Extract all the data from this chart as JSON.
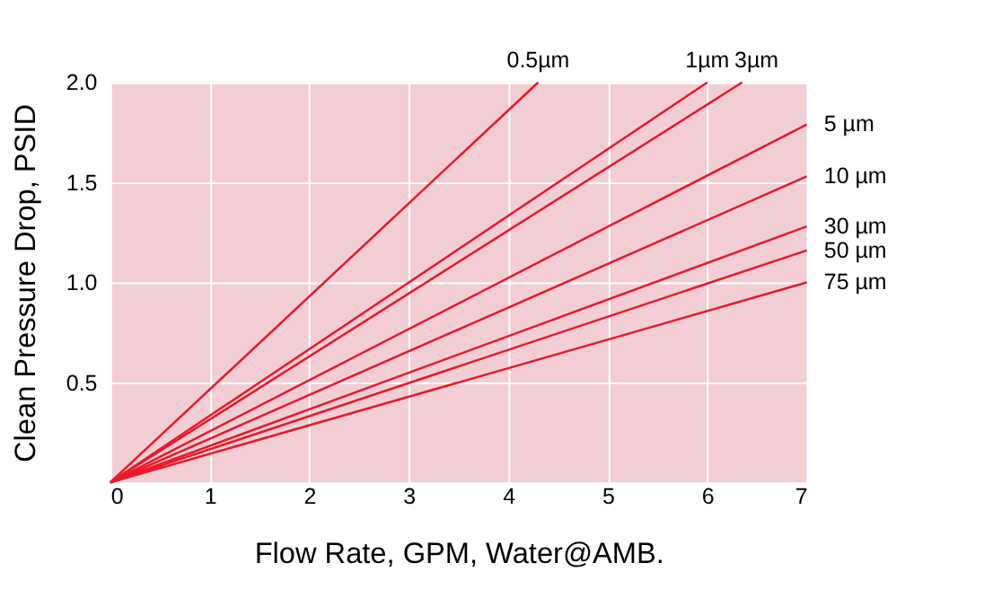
{
  "chart_data": {
    "type": "line",
    "xlabel": "Flow Rate, GPM, Water@AMB.",
    "ylabel": "Clean Pressure Drop, PSID",
    "xlim": [
      0,
      7
    ],
    "ylim": [
      0,
      2.0
    ],
    "xticks": [
      0,
      1,
      2,
      3,
      4,
      5,
      6,
      7
    ],
    "yticks": [
      0.5,
      {
        "value": 1,
        "label": "1.0"
      },
      1.5,
      {
        "value": 2,
        "label": "2.0"
      }
    ],
    "grid": true,
    "marker": "none",
    "line_style": "solid",
    "series": [
      {
        "name": "0.5µm",
        "color": "#e8192c",
        "x": [
          0,
          4.3
        ],
        "values": [
          0,
          2.0
        ]
      },
      {
        "name": "1µm",
        "color": "#e8192c",
        "x": [
          0,
          6.0
        ],
        "values": [
          0,
          2.0
        ]
      },
      {
        "name": "3µm",
        "color": "#e8192c",
        "x": [
          0,
          6.35
        ],
        "values": [
          0,
          2.0
        ]
      },
      {
        "name": "5  µm",
        "color": "#e8192c",
        "x": [
          0,
          7
        ],
        "values": [
          0,
          1.79
        ]
      },
      {
        "name": "10  µm",
        "color": "#e8192c",
        "x": [
          0,
          7
        ],
        "values": [
          0,
          1.53
        ]
      },
      {
        "name": "30  µm",
        "color": "#e8192c",
        "x": [
          0,
          7
        ],
        "values": [
          0,
          1.28
        ]
      },
      {
        "name": "50  µm",
        "color": "#e8192c",
        "x": [
          0,
          7
        ],
        "values": [
          0,
          1.16
        ]
      },
      {
        "name": "75  µm",
        "color": "#e8192c",
        "x": [
          0,
          7
        ],
        "values": [
          0,
          1.0
        ]
      }
    ]
  }
}
